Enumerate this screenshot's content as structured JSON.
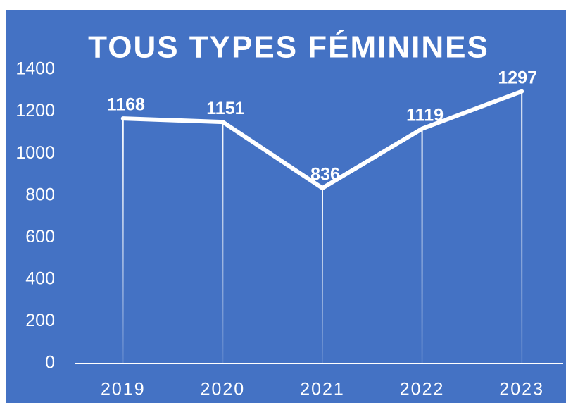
{
  "chart_data": {
    "type": "line",
    "title": "TOUS TYPES FÉMININES",
    "categories": [
      "2019",
      "2020",
      "2021",
      "2022",
      "2023"
    ],
    "values": [
      1168,
      1151,
      836,
      1119,
      1297
    ],
    "color": "#ffffff",
    "background": "#4472c4",
    "ylim": [
      0,
      1400
    ],
    "yticks": [
      0,
      200,
      400,
      600,
      800,
      1000,
      1200,
      1400
    ],
    "drop_lines": true,
    "grid": false
  }
}
